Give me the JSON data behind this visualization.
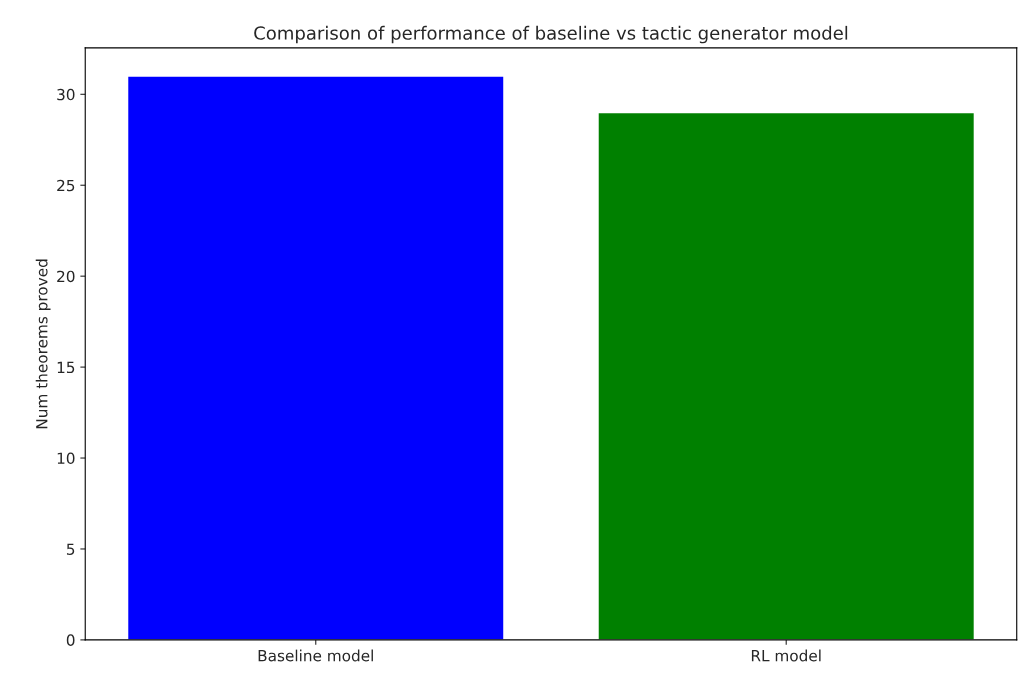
{
  "chart_data": {
    "type": "bar",
    "title": "Comparison of performance of baseline vs tactic generator model",
    "ylabel": "Num theorems proved",
    "categories": [
      "Baseline model",
      "RL model"
    ],
    "values": [
      31,
      29
    ],
    "colors": [
      "#0000ff",
      "#008000"
    ],
    "ylim": [
      0,
      32.55
    ],
    "yticks": [
      0,
      5,
      10,
      15,
      20,
      25,
      30
    ],
    "grid": false
  }
}
